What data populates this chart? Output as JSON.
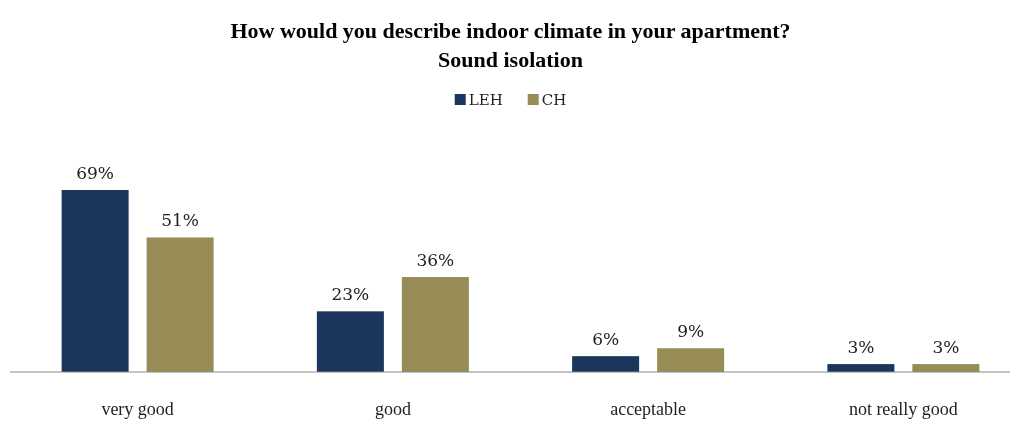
{
  "chart_data": {
    "type": "bar",
    "title": "How would you describe indoor climate in your apartment?",
    "subtitle": "Sound isolation",
    "categories": [
      "very good",
      "good",
      "acceptable",
      "not really good"
    ],
    "series": [
      {
        "name": "LEH",
        "color": "#1b365d",
        "values": [
          69,
          23,
          6,
          3
        ],
        "value_labels": [
          "69%",
          "23%",
          "6%",
          "3%"
        ]
      },
      {
        "name": "CH",
        "color": "#978c55",
        "values": [
          51,
          36,
          9,
          3
        ],
        "value_labels": [
          "51%",
          "36%",
          "9%",
          "3%"
        ]
      }
    ],
    "legend": "top"
  }
}
